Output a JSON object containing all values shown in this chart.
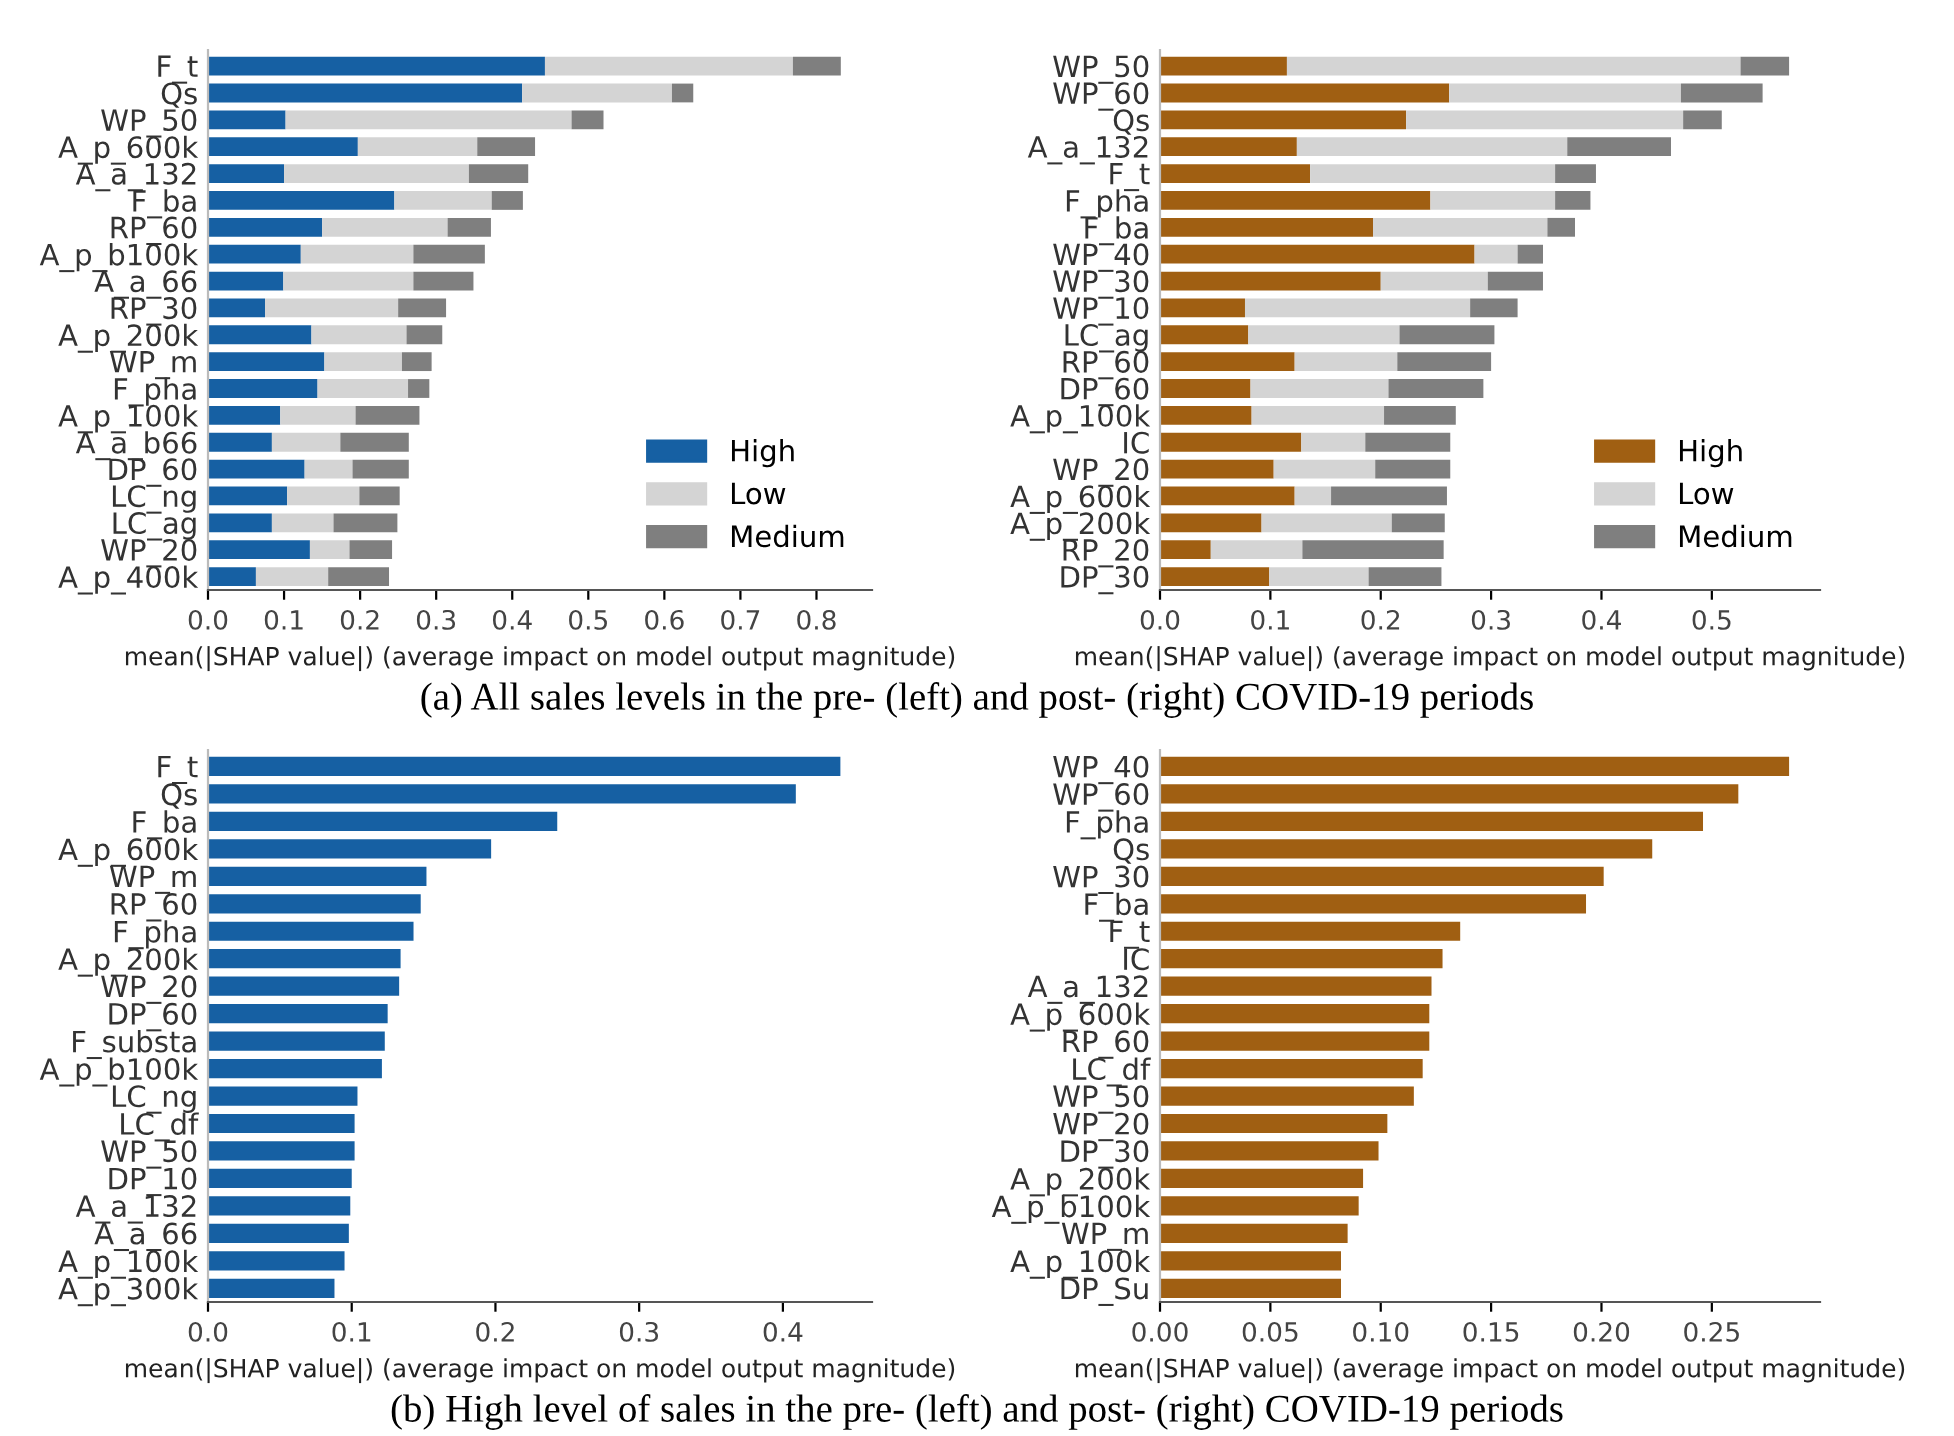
{
  "chart_data": [
    {
      "type": "bar",
      "orientation": "horizontal",
      "stacked": true,
      "xlabel": "mean(|SHAP value|) (average impact on model output magnitude)",
      "categories": [
        "F_t",
        "Qs",
        "WP_50",
        "A_p_600k",
        "A_a_132",
        "F_ba",
        "RP_60",
        "A_p_b100k",
        "A_a_66",
        "RP_30",
        "A_p_200k",
        "WP_m",
        "F_pha",
        "A_p_100k",
        "A_a_b66",
        "DP_60",
        "LC_ng",
        "LC_ag",
        "WP_20",
        "A_p_400k"
      ],
      "series": [
        {
          "name": "High",
          "color": "#1660a3",
          "values": [
            0.443,
            0.413,
            0.102,
            0.197,
            0.1,
            0.245,
            0.15,
            0.122,
            0.099,
            0.075,
            0.136,
            0.153,
            0.144,
            0.095,
            0.084,
            0.127,
            0.104,
            0.084,
            0.134,
            0.063
          ]
        },
        {
          "name": "Low",
          "color": "#d4d4d4",
          "values": [
            0.326,
            0.197,
            0.376,
            0.157,
            0.243,
            0.128,
            0.165,
            0.148,
            0.171,
            0.175,
            0.125,
            0.102,
            0.119,
            0.099,
            0.09,
            0.063,
            0.095,
            0.081,
            0.052,
            0.095
          ]
        },
        {
          "name": "Medium",
          "color": "#7f7f7f",
          "values": [
            0.063,
            0.028,
            0.042,
            0.076,
            0.078,
            0.041,
            0.057,
            0.094,
            0.079,
            0.063,
            0.047,
            0.039,
            0.028,
            0.084,
            0.09,
            0.074,
            0.053,
            0.084,
            0.056,
            0.08
          ]
        }
      ],
      "xlim": [
        0,
        0.873
      ],
      "xticks": [
        {
          "value": 0,
          "label": "0.0"
        },
        0.1,
        0.2,
        0.3,
        0.4,
        0.5,
        0.6,
        0.7,
        0.8
      ],
      "legend": "bottom right",
      "grid": false,
      "annotations": [
        "(a) All sales levels in the pre- (left) and post- (right) COVID-19 periods"
      ]
    },
    {
      "type": "bar",
      "orientation": "horizontal",
      "stacked": true,
      "xlabel": "mean(|SHAP value|) (average impact on model output magnitude)",
      "categories": [
        "WP_50",
        "WP_60",
        "Qs",
        "A_a_132",
        "F_t",
        "F_pha",
        "F_ba",
        "WP_40",
        "WP_30",
        "WP_10",
        "LC_ag",
        "RP_60",
        "DP_60",
        "A_p_100k",
        "IC",
        "WP_20",
        "A_p_600k",
        "A_p_200k",
        "RP_20",
        "DP_30"
      ],
      "series": [
        {
          "name": "High",
          "color": "#a05f12",
          "values": [
            0.115,
            0.262,
            0.223,
            0.124,
            0.136,
            0.245,
            0.193,
            0.285,
            0.2,
            0.077,
            0.08,
            0.122,
            0.082,
            0.083,
            0.128,
            0.103,
            0.122,
            0.092,
            0.046,
            0.099
          ]
        },
        {
          "name": "Low",
          "color": "#d4d4d4",
          "values": [
            0.411,
            0.21,
            0.251,
            0.245,
            0.222,
            0.113,
            0.158,
            0.039,
            0.097,
            0.204,
            0.137,
            0.093,
            0.125,
            0.12,
            0.058,
            0.092,
            0.033,
            0.118,
            0.083,
            0.09
          ]
        },
        {
          "name": "Medium",
          "color": "#7f7f7f",
          "values": [
            0.044,
            0.074,
            0.035,
            0.094,
            0.037,
            0.032,
            0.025,
            0.023,
            0.05,
            0.043,
            0.086,
            0.085,
            0.086,
            0.065,
            0.077,
            0.068,
            0.105,
            0.048,
            0.128,
            0.066
          ]
        }
      ],
      "xlim": [
        0,
        0.598
      ],
      "xticks": [
        {
          "value": 0,
          "label": "0.0"
        },
        0.1,
        0.2,
        0.3,
        0.4,
        0.5
      ],
      "legend": "bottom right",
      "grid": false
    },
    {
      "type": "bar",
      "orientation": "horizontal",
      "xlabel": "mean(|SHAP value|) (average impact on model output magnitude)",
      "categories": [
        "F_t",
        "Qs",
        "F_ba",
        "A_p_600k",
        "WP_m",
        "RP_60",
        "F_pha",
        "A_p_200k",
        "WP_20",
        "DP_60",
        "F_substa",
        "A_p_b100k",
        "LC_ng",
        "LC_df",
        "WP_50",
        "DP_10",
        "A_a_132",
        "A_a_66",
        "A_p_100k",
        "A_p_300k"
      ],
      "color": "#1660a3",
      "values": [
        0.44,
        0.409,
        0.243,
        0.197,
        0.152,
        0.148,
        0.143,
        0.134,
        0.133,
        0.125,
        0.123,
        0.121,
        0.104,
        0.102,
        0.102,
        0.1,
        0.099,
        0.098,
        0.095,
        0.088
      ],
      "xlim": [
        0,
        0.462
      ],
      "xticks": [
        {
          "value": 0,
          "label": "0.0"
        },
        0.1,
        0.2,
        0.3,
        0.4
      ],
      "grid": false,
      "annotations": [
        "(b) High level of sales in the pre- (left) and post- (right) COVID-19 periods"
      ]
    },
    {
      "type": "bar",
      "orientation": "horizontal",
      "xlabel": "mean(|SHAP value|) (average impact on model output magnitude)",
      "categories": [
        "WP_40",
        "WP_60",
        "F_pha",
        "Qs",
        "WP_30",
        "F_ba",
        "F_t",
        "IC",
        "A_a_132",
        "A_p_600k",
        "RP_60",
        "LC_df",
        "WP_50",
        "WP_20",
        "DP_30",
        "A_p_200k",
        "A_p_b100k",
        "WP_m",
        "A_p_100k",
        "DP_Su"
      ],
      "color": "#a05f12",
      "values": [
        0.285,
        0.262,
        0.246,
        0.223,
        0.201,
        0.193,
        0.136,
        0.128,
        0.123,
        0.122,
        0.122,
        0.119,
        0.115,
        0.103,
        0.099,
        0.092,
        0.09,
        0.085,
        0.082,
        0.082
      ],
      "xlim": [
        0,
        0.299
      ],
      "xticks": [
        {
          "value": 0,
          "label": "0.00"
        },
        {
          "value": 0.05,
          "label": "0.05"
        },
        {
          "value": 0.1,
          "label": "0.10"
        },
        {
          "value": 0.15,
          "label": "0.15"
        },
        {
          "value": 0.2,
          "label": "0.20"
        },
        {
          "value": 0.25,
          "label": "0.25"
        }
      ],
      "grid": false
    }
  ]
}
